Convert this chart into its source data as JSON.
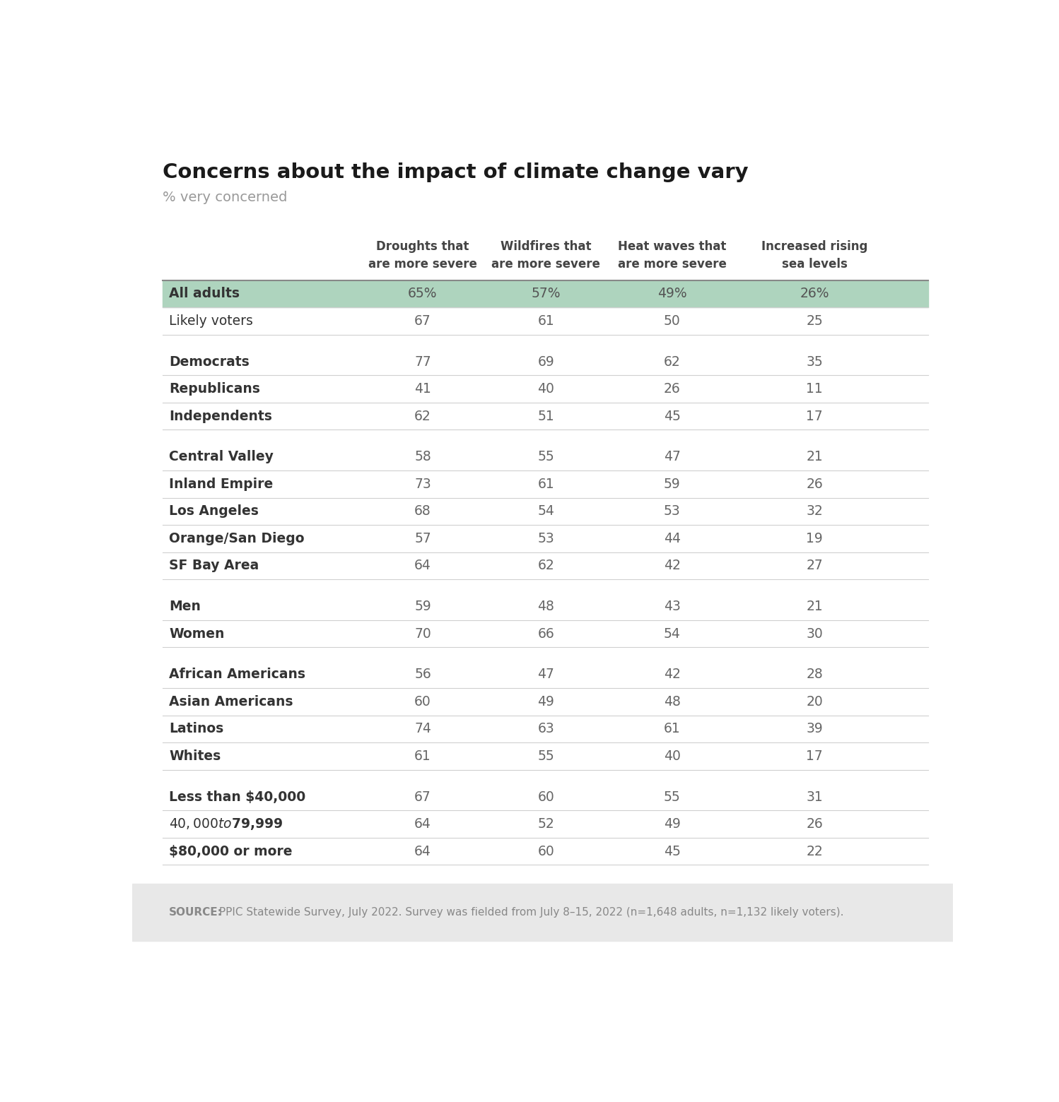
{
  "title": "Concerns about the impact of climate change vary",
  "subtitle": "% very concerned",
  "col_headers": [
    "Droughts that\nare more severe",
    "Wildfires that\nare more severe",
    "Heat waves that\nare more severe",
    "Increased rising\nsea levels"
  ],
  "rows": [
    {
      "label": "All adults",
      "values": [
        "65%",
        "57%",
        "49%",
        "26%"
      ],
      "bold": true,
      "highlight": true
    },
    {
      "label": "Likely voters",
      "values": [
        "67",
        "61",
        "50",
        "25"
      ],
      "bold": false,
      "highlight": false
    },
    {
      "label": "",
      "values": [
        "",
        "",
        "",
        ""
      ],
      "spacer": true,
      "spacer_size": "large"
    },
    {
      "label": "Democrats",
      "values": [
        "77",
        "69",
        "62",
        "35"
      ],
      "bold": true,
      "highlight": false
    },
    {
      "label": "Republicans",
      "values": [
        "41",
        "40",
        "26",
        "11"
      ],
      "bold": true,
      "highlight": false
    },
    {
      "label": "Independents",
      "values": [
        "62",
        "51",
        "45",
        "17"
      ],
      "bold": true,
      "highlight": false
    },
    {
      "label": "",
      "values": [
        "",
        "",
        "",
        ""
      ],
      "spacer": true,
      "spacer_size": "large"
    },
    {
      "label": "Central Valley",
      "values": [
        "58",
        "55",
        "47",
        "21"
      ],
      "bold": true,
      "highlight": false
    },
    {
      "label": "Inland Empire",
      "values": [
        "73",
        "61",
        "59",
        "26"
      ],
      "bold": true,
      "highlight": false
    },
    {
      "label": "Los Angeles",
      "values": [
        "68",
        "54",
        "53",
        "32"
      ],
      "bold": true,
      "highlight": false
    },
    {
      "label": "Orange/San Diego",
      "values": [
        "57",
        "53",
        "44",
        "19"
      ],
      "bold": true,
      "highlight": false
    },
    {
      "label": "SF Bay Area",
      "values": [
        "64",
        "62",
        "42",
        "27"
      ],
      "bold": true,
      "highlight": false
    },
    {
      "label": "",
      "values": [
        "",
        "",
        "",
        ""
      ],
      "spacer": true,
      "spacer_size": "large"
    },
    {
      "label": "Men",
      "values": [
        "59",
        "48",
        "43",
        "21"
      ],
      "bold": true,
      "highlight": false
    },
    {
      "label": "Women",
      "values": [
        "70",
        "66",
        "54",
        "30"
      ],
      "bold": true,
      "highlight": false
    },
    {
      "label": "",
      "values": [
        "",
        "",
        "",
        ""
      ],
      "spacer": true,
      "spacer_size": "large"
    },
    {
      "label": "African Americans",
      "values": [
        "56",
        "47",
        "42",
        "28"
      ],
      "bold": true,
      "highlight": false
    },
    {
      "label": "Asian Americans",
      "values": [
        "60",
        "49",
        "48",
        "20"
      ],
      "bold": true,
      "highlight": false
    },
    {
      "label": "Latinos",
      "values": [
        "74",
        "63",
        "61",
        "39"
      ],
      "bold": true,
      "highlight": false
    },
    {
      "label": "Whites",
      "values": [
        "61",
        "55",
        "40",
        "17"
      ],
      "bold": true,
      "highlight": false
    },
    {
      "label": "",
      "values": [
        "",
        "",
        "",
        ""
      ],
      "spacer": true,
      "spacer_size": "large"
    },
    {
      "label": "Less than $40,000",
      "values": [
        "67",
        "60",
        "55",
        "31"
      ],
      "bold": true,
      "highlight": false
    },
    {
      "label": "$40,000 to $79,999",
      "values": [
        "64",
        "52",
        "49",
        "26"
      ],
      "bold": true,
      "highlight": false
    },
    {
      "label": "$80,000 or more",
      "values": [
        "64",
        "60",
        "45",
        "22"
      ],
      "bold": true,
      "highlight": false
    }
  ],
  "source_label": "SOURCE:",
  "source_rest": " PPIC Statewide Survey, July 2022. Survey was fielded from July 8–15, 2022 (n=1,648 adults, n=1,132 likely voters).",
  "bg_color": "#ffffff",
  "highlight_color": "#aed4be",
  "footer_bg_color": "#e8e8e8",
  "line_color": "#d0d0d0",
  "header_text_color": "#444444",
  "label_color_normal": "#333333",
  "label_color_highlight": "#333333",
  "value_color_normal": "#666666",
  "value_color_highlight": "#555555"
}
